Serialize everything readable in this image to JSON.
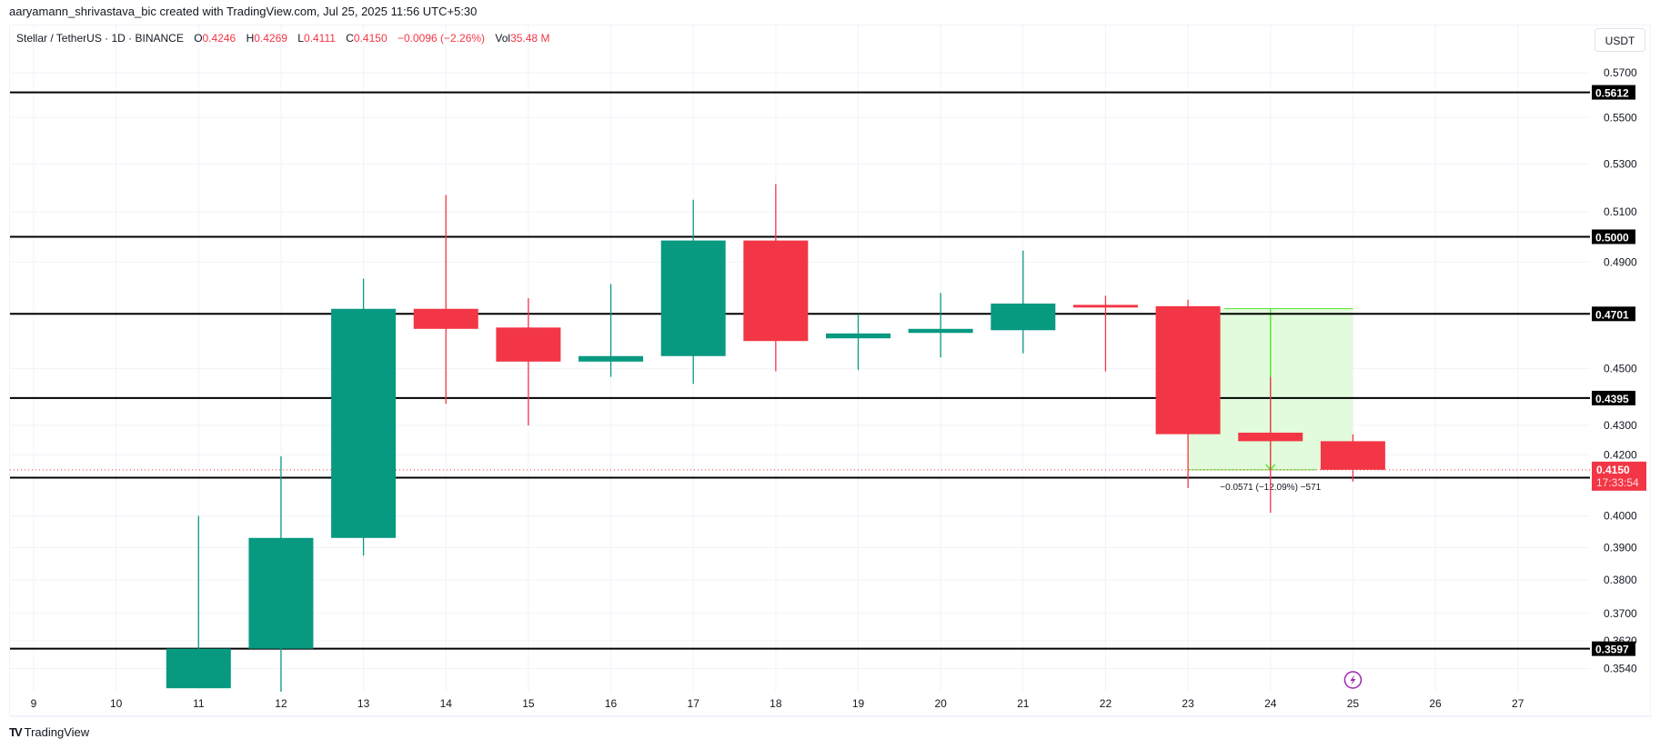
{
  "credit": "aaryamann_shrivastava_bic created with TradingView.com, Jul 25, 2025 11:56 UTC+5:30",
  "legend": {
    "symbol": "Stellar / TetherUS · 1D · BINANCE",
    "o_label": "O",
    "o_value": "0.4246",
    "h_label": "H",
    "h_value": "0.4269",
    "l_label": "L",
    "l_value": "0.4111",
    "c_label": "C",
    "c_value": "0.4150",
    "change": "−0.0096 (−2.26%)",
    "vol_label": "Vol",
    "vol_value": "35.48 M"
  },
  "currency_button": "USDT",
  "brand": {
    "logo": "TV",
    "name": "TradingView"
  },
  "colors": {
    "up": "#089981",
    "down": "#f23645",
    "grid": "#f0f3fa",
    "level": "#000000",
    "measure_fill": "#e2fbdc",
    "measure_line": "#5ce63b",
    "event": "#9c27b0"
  },
  "icons": {
    "event_marker": "lightning-icon",
    "brand": "tradingview-logo-icon"
  },
  "chart_data": {
    "type": "candlestick",
    "title": "Stellar / TetherUS · 1D · BINANCE",
    "xlabel": "",
    "ylabel": "USDT",
    "y_scale": "log",
    "ylim": [
      0.3485,
      0.58
    ],
    "grid": true,
    "x_ticks": [
      "9",
      "10",
      "11",
      "12",
      "13",
      "14",
      "15",
      "16",
      "17",
      "18",
      "19",
      "20",
      "21",
      "22",
      "23",
      "24",
      "25",
      "26",
      "27"
    ],
    "y_ticks": [
      "0.5700",
      "0.5500",
      "0.5300",
      "0.5100",
      "0.4900",
      "0.4500",
      "0.4300",
      "0.4200",
      "0.4000",
      "0.3900",
      "0.3800",
      "0.3700",
      "0.3620",
      "0.3540"
    ],
    "candles": [
      {
        "day": "11",
        "open": 0.3485,
        "high": 0.4,
        "low": 0.3485,
        "close": 0.3597
      },
      {
        "day": "12",
        "open": 0.3597,
        "high": 0.4195,
        "low": 0.347,
        "close": 0.393
      },
      {
        "day": "13",
        "open": 0.393,
        "high": 0.4835,
        "low": 0.3875,
        "close": 0.472
      },
      {
        "day": "14",
        "open": 0.472,
        "high": 0.517,
        "low": 0.4375,
        "close": 0.4645
      },
      {
        "day": "15",
        "open": 0.465,
        "high": 0.476,
        "low": 0.43,
        "close": 0.4525
      },
      {
        "day": "16",
        "open": 0.4525,
        "high": 0.4815,
        "low": 0.447,
        "close": 0.4545
      },
      {
        "day": "17",
        "open": 0.4545,
        "high": 0.515,
        "low": 0.4445,
        "close": 0.4985
      },
      {
        "day": "18",
        "open": 0.4985,
        "high": 0.5215,
        "low": 0.449,
        "close": 0.46
      },
      {
        "day": "19",
        "open": 0.461,
        "high": 0.47,
        "low": 0.4495,
        "close": 0.4628
      },
      {
        "day": "20",
        "open": 0.463,
        "high": 0.478,
        "low": 0.454,
        "close": 0.4645
      },
      {
        "day": "21",
        "open": 0.464,
        "high": 0.4945,
        "low": 0.4555,
        "close": 0.474
      },
      {
        "day": "22",
        "open": 0.4735,
        "high": 0.477,
        "low": 0.449,
        "close": 0.4725
      },
      {
        "day": "23",
        "open": 0.473,
        "high": 0.4755,
        "low": 0.409,
        "close": 0.427
      },
      {
        "day": "24",
        "open": 0.4275,
        "high": 0.447,
        "low": 0.401,
        "close": 0.4246
      },
      {
        "day": "25",
        "open": 0.4246,
        "high": 0.4269,
        "low": 0.4111,
        "close": 0.415
      }
    ],
    "horizontal_levels": [
      "0.5612",
      "0.5000",
      "0.4701",
      "0.4395",
      "0.4124",
      "0.3597"
    ],
    "last_price": {
      "value": "0.4150",
      "countdown": "17:33:54"
    },
    "measurement": {
      "from_day": "23",
      "to_day": "25",
      "from_price": 0.4721,
      "to_price": 0.415,
      "label": "−0.0571 (−12.09%) −571"
    },
    "event_marker_day": "25"
  }
}
